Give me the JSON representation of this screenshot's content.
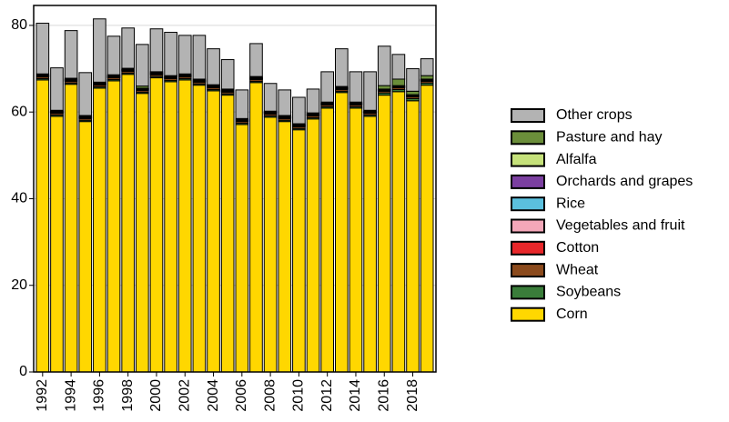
{
  "chart_data": {
    "type": "stacked_bar",
    "categories": [
      "1992",
      null,
      "1994",
      null,
      "1996",
      null,
      "1998",
      null,
      "2000",
      null,
      "2002",
      null,
      "2004",
      null,
      "2006",
      null,
      "2008",
      null,
      "2010",
      null,
      "2012",
      null,
      "2014",
      null,
      "2016",
      null,
      "2018",
      null
    ],
    "series": [
      {
        "name": "Corn",
        "color": "#ffd700",
        "values": [
          67.4,
          59.0,
          66.4,
          57.8,
          65.5,
          67.2,
          68.7,
          64.3,
          67.9,
          67.0,
          67.4,
          66.2,
          64.9,
          63.9,
          57.1,
          66.8,
          58.8,
          57.8,
          55.9,
          58.4,
          60.9,
          64.5,
          60.9,
          59.0,
          63.9,
          64.7,
          62.6,
          66.2
        ]
      },
      {
        "name": "Soybeans",
        "color": "#3a7d3a",
        "values": [
          0.3,
          0.3,
          0.3,
          0.3,
          0.3,
          0.3,
          0.3,
          0.3,
          0.3,
          0.3,
          0.3,
          0.3,
          0.3,
          0.3,
          0.3,
          0.3,
          0.3,
          0.3,
          0.3,
          0.3,
          0.3,
          0.3,
          0.3,
          0.3,
          0.5,
          0.5,
          0.5,
          0.5
        ]
      },
      {
        "name": "Wheat",
        "color": "#8b4a1c",
        "values": [
          0.4,
          0.4,
          0.4,
          0.4,
          0.4,
          0.4,
          0.4,
          0.4,
          0.4,
          0.4,
          0.4,
          0.4,
          0.4,
          0.4,
          0.4,
          0.4,
          0.4,
          0.4,
          0.4,
          0.4,
          0.4,
          0.4,
          0.4,
          0.4,
          0.4,
          0.4,
          0.4,
          0.4
        ]
      },
      {
        "name": "Cotton",
        "color": "#e8272a",
        "values": [
          0.1,
          0.1,
          0.1,
          0.1,
          0.1,
          0.1,
          0.1,
          0.1,
          0.1,
          0.1,
          0.1,
          0.1,
          0.1,
          0.1,
          0.1,
          0.1,
          0.1,
          0.1,
          0.1,
          0.1,
          0.1,
          0.1,
          0.1,
          0.1,
          0.1,
          0.1,
          0.1,
          0.1
        ]
      },
      {
        "name": "Vegetables and fruit",
        "color": "#f4a7b9",
        "values": [
          0.1,
          0.1,
          0.1,
          0.1,
          0.1,
          0.1,
          0.1,
          0.1,
          0.1,
          0.1,
          0.1,
          0.1,
          0.1,
          0.1,
          0.1,
          0.1,
          0.1,
          0.1,
          0.1,
          0.1,
          0.1,
          0.1,
          0.1,
          0.1,
          0.1,
          0.1,
          0.1,
          0.1
        ]
      },
      {
        "name": "Rice",
        "color": "#5bc0de",
        "values": [
          0.1,
          0.1,
          0.1,
          0.1,
          0.1,
          0.1,
          0.1,
          0.1,
          0.1,
          0.1,
          0.1,
          0.1,
          0.1,
          0.1,
          0.1,
          0.1,
          0.1,
          0.1,
          0.1,
          0.1,
          0.1,
          0.1,
          0.1,
          0.1,
          0.1,
          0.1,
          0.1,
          0.1
        ]
      },
      {
        "name": "Orchards and grapes",
        "color": "#7b3fa0",
        "values": [
          0.1,
          0.1,
          0.1,
          0.1,
          0.1,
          0.1,
          0.1,
          0.1,
          0.1,
          0.1,
          0.1,
          0.1,
          0.1,
          0.1,
          0.1,
          0.1,
          0.1,
          0.1,
          0.1,
          0.1,
          0.1,
          0.1,
          0.1,
          0.1,
          0.1,
          0.1,
          0.1,
          0.1
        ]
      },
      {
        "name": "Alfalfa",
        "color": "#c5e17a",
        "values": [
          0.1,
          0.1,
          0.1,
          0.1,
          0.1,
          0.1,
          0.1,
          0.1,
          0.1,
          0.1,
          0.1,
          0.1,
          0.1,
          0.1,
          0.1,
          0.1,
          0.1,
          0.1,
          0.1,
          0.1,
          0.1,
          0.1,
          0.1,
          0.1,
          0.1,
          0.1,
          0.1,
          0.1
        ]
      },
      {
        "name": "Pasture and hay",
        "color": "#6b8e3a",
        "values": [
          0.2,
          0.2,
          0.2,
          0.2,
          0.2,
          0.2,
          0.2,
          0.5,
          0.2,
          0.2,
          0.2,
          0.2,
          0.2,
          0.2,
          0.2,
          0.2,
          0.2,
          0.2,
          0.2,
          0.2,
          0.2,
          0.2,
          0.2,
          0.2,
          0.8,
          1.5,
          0.8,
          0.8
        ]
      },
      {
        "name": "Other crops",
        "color": "#b3b3b3",
        "values": [
          11.7,
          9.8,
          11.0,
          9.9,
          14.6,
          8.9,
          9.3,
          9.6,
          9.9,
          10.0,
          8.9,
          10.1,
          8.3,
          6.8,
          6.6,
          7.6,
          6.4,
          5.9,
          6.1,
          5.5,
          7.0,
          8.7,
          7.0,
          8.9,
          9.1,
          5.7,
          5.2,
          3.9
        ]
      }
    ],
    "ylim": [
      0,
      84.6
    ],
    "yticks": [
      0,
      20,
      40,
      60,
      80
    ],
    "grid": true,
    "legend": "right"
  }
}
